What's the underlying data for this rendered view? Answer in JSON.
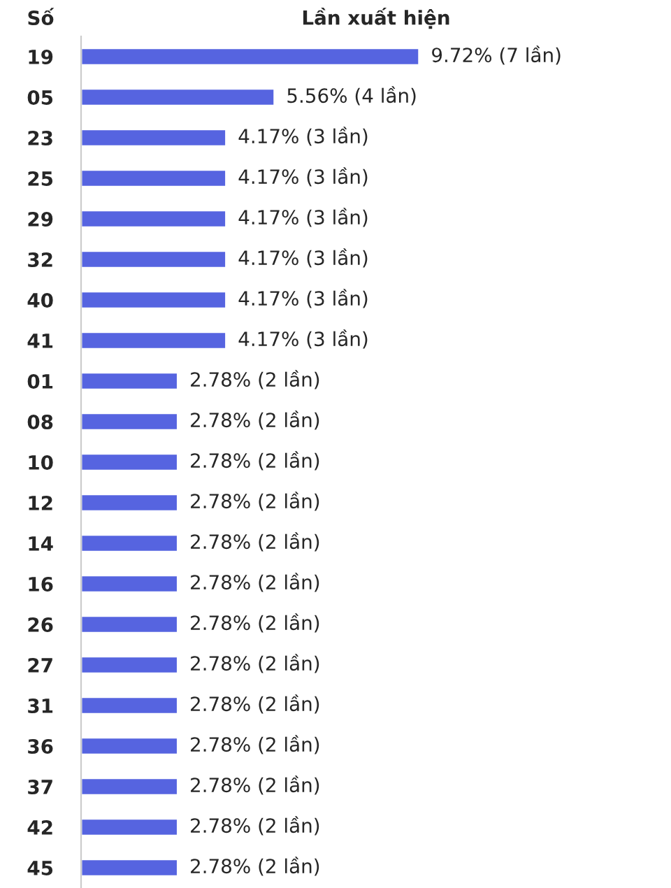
{
  "chart_data": {
    "type": "bar",
    "orientation": "horizontal",
    "ylabel": "Số",
    "xlabel": "Lần xuất hiện",
    "categories": [
      "19",
      "05",
      "23",
      "25",
      "29",
      "32",
      "40",
      "41",
      "01",
      "08",
      "10",
      "12",
      "14",
      "16",
      "26",
      "27",
      "31",
      "36",
      "37",
      "42",
      "45"
    ],
    "values": [
      9.72,
      5.56,
      4.17,
      4.17,
      4.17,
      4.17,
      4.17,
      4.17,
      2.78,
      2.78,
      2.78,
      2.78,
      2.78,
      2.78,
      2.78,
      2.78,
      2.78,
      2.78,
      2.78,
      2.78,
      2.78
    ],
    "value_labels": [
      "9.72% (7 lần)",
      "5.56% (4 lần)",
      "4.17% (3 lần)",
      "4.17% (3 lần)",
      "4.17% (3 lần)",
      "4.17% (3 lần)",
      "4.17% (3 lần)",
      "4.17% (3 lần)",
      "2.78% (2 lần)",
      "2.78% (2 lần)",
      "2.78% (2 lần)",
      "2.78% (2 lần)",
      "2.78% (2 lần)",
      "2.78% (2 lần)",
      "2.78% (2 lần)",
      "2.78% (2 lần)",
      "2.78% (2 lần)",
      "2.78% (2 lần)",
      "2.78% (2 lần)",
      "2.78% (2 lần)",
      "2.78% (2 lần)"
    ],
    "color": "#5664e0",
    "grid": false,
    "legend": false
  }
}
